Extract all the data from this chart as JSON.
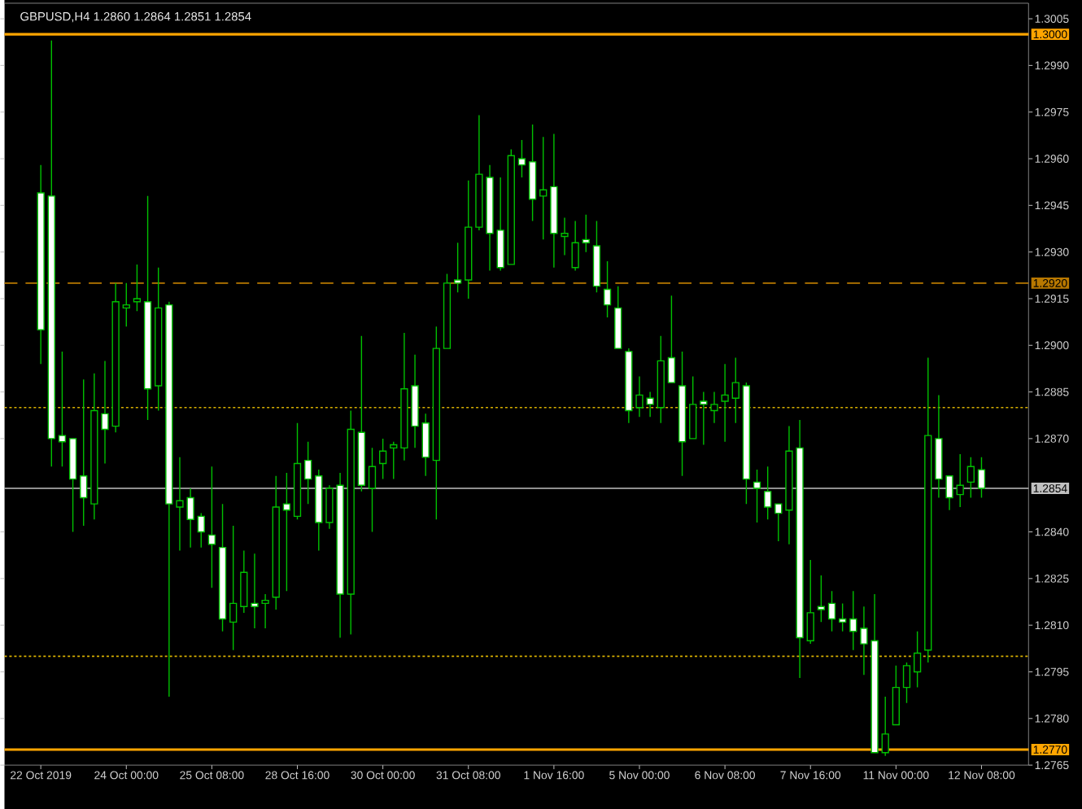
{
  "chart_data": {
    "type": "candlestick",
    "title": "GBPUSD,H4 1.2860 1.2864 1.2851 1.2854",
    "categories": [
      "22 Oct 2019",
      null,
      null,
      null,
      null,
      null,
      null,
      null,
      "24 Oct 00:00",
      null,
      null,
      null,
      null,
      null,
      null,
      null,
      "25 Oct 08:00",
      null,
      null,
      null,
      null,
      null,
      null,
      null,
      "28 Oct 16:00",
      null,
      null,
      null,
      null,
      null,
      null,
      null,
      "30 Oct 00:00",
      null,
      null,
      null,
      null,
      null,
      null,
      null,
      "31 Oct 08:00",
      null,
      null,
      null,
      null,
      null,
      null,
      null,
      "1 Nov 16:00",
      null,
      null,
      null,
      null,
      null,
      null,
      null,
      "5 Nov 00:00",
      null,
      null,
      null,
      null,
      null,
      null,
      null,
      "6 Nov 08:00",
      null,
      null,
      null,
      null,
      null,
      null,
      null,
      "7 Nov 16:00",
      null,
      null,
      null,
      null,
      null,
      null,
      null,
      "11 Nov 00:00",
      null,
      null,
      null,
      null,
      null,
      null,
      null,
      "12 Nov 08:00"
    ],
    "ohlc": [
      [
        1.2949,
        1.2958,
        1.2894,
        1.2905
      ],
      [
        1.2948,
        1.2998,
        1.2861,
        1.287
      ],
      [
        1.2871,
        1.2898,
        1.2861,
        1.2869
      ],
      [
        1.287,
        1.287,
        1.284,
        1.2857
      ],
      [
        1.2858,
        1.2889,
        1.2842,
        1.2851
      ],
      [
        1.2849,
        1.2891,
        1.2844,
        1.2879
      ],
      [
        1.2878,
        1.2895,
        1.2862,
        1.2873
      ],
      [
        1.2874,
        1.292,
        1.2872,
        1.2914
      ],
      [
        1.2912,
        1.292,
        1.2906,
        1.2913
      ],
      [
        1.2914,
        1.2926,
        1.2911,
        1.2915
      ],
      [
        1.2914,
        1.2948,
        1.2876,
        1.2886
      ],
      [
        1.2887,
        1.2925,
        1.2879,
        1.2912
      ],
      [
        1.2913,
        1.2914,
        1.2787,
        1.2849
      ],
      [
        1.2848,
        1.2864,
        1.2834,
        1.285
      ],
      [
        1.2851,
        1.2854,
        1.2835,
        1.2844
      ],
      [
        1.2845,
        1.2846,
        1.2835,
        1.284
      ],
      [
        1.2839,
        1.2861,
        1.2822,
        1.2836
      ],
      [
        1.2835,
        1.2849,
        1.2808,
        1.2812
      ],
      [
        1.2811,
        1.2842,
        1.2802,
        1.2817
      ],
      [
        1.2816,
        1.2834,
        1.2814,
        1.2827
      ],
      [
        1.2817,
        1.2833,
        1.2809,
        1.2816
      ],
      [
        1.2817,
        1.282,
        1.2809,
        1.2818
      ],
      [
        1.2819,
        1.2858,
        1.2815,
        1.2848
      ],
      [
        1.2849,
        1.2859,
        1.2821,
        1.2847
      ],
      [
        1.2845,
        1.2875,
        1.2844,
        1.2862
      ],
      [
        1.2863,
        1.2869,
        1.2849,
        1.2857
      ],
      [
        1.2858,
        1.286,
        1.2834,
        1.2843
      ],
      [
        1.2843,
        1.2855,
        1.2841,
        1.2854
      ],
      [
        1.2855,
        1.2859,
        1.2806,
        1.282
      ],
      [
        1.282,
        1.2879,
        1.2807,
        1.2873
      ],
      [
        1.2872,
        1.2903,
        1.2853,
        1.2855
      ],
      [
        1.2854,
        1.2867,
        1.284,
        1.2861
      ],
      [
        1.2862,
        1.287,
        1.2857,
        1.2866
      ],
      [
        1.2867,
        1.2869,
        1.2857,
        1.2868
      ],
      [
        1.2867,
        1.2904,
        1.2863,
        1.2886
      ],
      [
        1.2887,
        1.2897,
        1.2867,
        1.2874
      ],
      [
        1.2875,
        1.2878,
        1.2858,
        1.2864
      ],
      [
        1.2863,
        1.2906,
        1.2844,
        1.2899
      ],
      [
        1.2899,
        1.2923,
        1.2899,
        1.292
      ],
      [
        1.2921,
        1.2933,
        1.2917,
        1.292
      ],
      [
        1.2921,
        1.2953,
        1.2915,
        1.2938
      ],
      [
        1.2938,
        1.2974,
        1.2937,
        1.2955
      ],
      [
        1.2954,
        1.2958,
        1.2924,
        1.2936
      ],
      [
        1.2937,
        1.2954,
        1.2924,
        1.2925
      ],
      [
        1.2926,
        1.2963,
        1.2926,
        1.2961
      ],
      [
        1.296,
        1.2966,
        1.2954,
        1.2958
      ],
      [
        1.2959,
        1.2971,
        1.294,
        1.2947
      ],
      [
        1.2948,
        1.2967,
        1.2934,
        1.295
      ],
      [
        1.2951,
        1.2968,
        1.2925,
        1.2936
      ],
      [
        1.2935,
        1.2941,
        1.2929,
        1.2936
      ],
      [
        1.2925,
        1.294,
        1.2924,
        1.2933
      ],
      [
        1.2934,
        1.2942,
        1.293,
        1.2933
      ],
      [
        1.2932,
        1.294,
        1.2917,
        1.2919
      ],
      [
        1.2918,
        1.2927,
        1.2909,
        1.2913
      ],
      [
        1.2912,
        1.2919,
        1.2899,
        1.2899
      ],
      [
        1.2898,
        1.2899,
        1.2875,
        1.2879
      ],
      [
        1.288,
        1.289,
        1.2877,
        1.2884
      ],
      [
        1.2883,
        1.2885,
        1.2877,
        1.2881
      ],
      [
        1.288,
        1.2903,
        1.2875,
        1.2895
      ],
      [
        1.2896,
        1.2916,
        1.2888,
        1.2888
      ],
      [
        1.2887,
        1.2898,
        1.2858,
        1.2869
      ],
      [
        1.287,
        1.289,
        1.287,
        1.2881
      ],
      [
        1.2882,
        1.2885,
        1.2868,
        1.2881
      ],
      [
        1.2879,
        1.2885,
        1.2875,
        1.2881
      ],
      [
        1.2882,
        1.2894,
        1.2869,
        1.2884
      ],
      [
        1.2883,
        1.2896,
        1.2875,
        1.2888
      ],
      [
        1.2887,
        1.2888,
        1.2849,
        1.2857
      ],
      [
        1.2856,
        1.286,
        1.2843,
        1.2854
      ],
      [
        1.2853,
        1.2861,
        1.2844,
        1.2848
      ],
      [
        1.2849,
        1.2849,
        1.2837,
        1.2846
      ],
      [
        1.2847,
        1.2874,
        1.2836,
        1.2866
      ],
      [
        1.2867,
        1.2876,
        1.2793,
        1.2806
      ],
      [
        1.2805,
        1.2831,
        1.2804,
        1.2814
      ],
      [
        1.2816,
        1.2826,
        1.2811,
        1.2815
      ],
      [
        1.2817,
        1.2821,
        1.2808,
        1.2812
      ],
      [
        1.2812,
        1.2817,
        1.2808,
        1.2811
      ],
      [
        1.2812,
        1.2821,
        1.2802,
        1.2808
      ],
      [
        1.2809,
        1.2816,
        1.2794,
        1.2804
      ],
      [
        1.2805,
        1.282,
        1.2769,
        1.2769
      ],
      [
        1.2769,
        1.2787,
        1.2768,
        1.2775
      ],
      [
        1.2778,
        1.2797,
        1.2778,
        1.279
      ],
      [
        1.279,
        1.2798,
        1.2785,
        1.2797
      ],
      [
        1.2795,
        1.2808,
        1.279,
        1.2801
      ],
      [
        1.2802,
        1.2896,
        1.2798,
        1.2871
      ],
      [
        1.287,
        1.2884,
        1.2851,
        1.2857
      ],
      [
        1.2858,
        1.2858,
        1.2847,
        1.2851
      ],
      [
        1.2852,
        1.2865,
        1.2848,
        1.2855
      ],
      [
        1.2856,
        1.2864,
        1.2851,
        1.2861
      ],
      [
        1.286,
        1.2864,
        1.2851,
        1.2854
      ]
    ],
    "color": "#00c000",
    "colors": [
      "#ffffff",
      "#ffffff",
      "#ffffff",
      "#ffffff",
      "#ffffff",
      "#000000",
      "#ffffff",
      "#000000",
      "#000000",
      "#000000",
      "#ffffff",
      "#000000",
      "#ffffff",
      "#000000",
      "#ffffff",
      "#ffffff",
      "#ffffff",
      "#ffffff",
      "#000000",
      "#000000",
      "#ffffff",
      "#000000",
      "#000000",
      "#ffffff",
      "#000000",
      "#ffffff",
      "#ffffff",
      "#000000",
      "#ffffff",
      "#000000",
      "#ffffff",
      "#000000",
      "#000000",
      "#000000",
      "#000000",
      "#ffffff",
      "#ffffff",
      "#000000",
      "#000000",
      "#ffffff",
      "#000000",
      "#000000",
      "#ffffff",
      "#ffffff",
      "#000000",
      "#ffffff",
      "#ffffff",
      "#000000",
      "#ffffff",
      "#000000",
      "#000000",
      "#ffffff",
      "#ffffff",
      "#ffffff",
      "#ffffff",
      "#ffffff",
      "#000000",
      "#ffffff",
      "#000000",
      "#ffffff",
      "#ffffff",
      "#000000",
      "#ffffff",
      "#000000",
      "#000000",
      "#000000",
      "#ffffff",
      "#ffffff",
      "#ffffff",
      "#ffffff",
      "#000000",
      "#ffffff",
      "#000000",
      "#ffffff",
      "#ffffff",
      "#ffffff",
      "#ffffff",
      "#ffffff",
      "#ffffff",
      "#000000",
      "#000000",
      "#000000",
      "#000000",
      "#000000",
      "#ffffff",
      "#ffffff",
      "#000000",
      "#000000",
      "#ffffff"
    ],
    "ylim": [
      1.2765,
      1.301
    ],
    "yticks": [
      {
        "value": 1.3005,
        "label": "1.3005"
      },
      {
        "value": 1.299,
        "label": "1.2990"
      },
      {
        "value": 1.2975,
        "label": "1.2975"
      },
      {
        "value": 1.296,
        "label": "1.2960"
      },
      {
        "value": 1.2945,
        "label": "1.2945"
      },
      {
        "value": 1.293,
        "label": "1.2930"
      },
      {
        "value": 1.2915,
        "label": "1.2915"
      },
      {
        "value": 1.29,
        "label": "1.2900"
      },
      {
        "value": 1.2885,
        "label": "1.2885"
      },
      {
        "value": 1.287,
        "label": "1.2870"
      },
      {
        "value": 1.284,
        "label": "1.2840"
      },
      {
        "value": 1.2825,
        "label": "1.2825"
      },
      {
        "value": 1.281,
        "label": "1.2810"
      },
      {
        "value": 1.2795,
        "label": "1.2795"
      },
      {
        "value": 1.278,
        "label": "1.2780"
      },
      {
        "value": 1.2765,
        "label": "1.2765"
      }
    ],
    "ref_lines": [
      {
        "axis": "y",
        "value": 1.3,
        "label": "1.3000",
        "color": "#ffa500",
        "line_style": "solid"
      },
      {
        "axis": "y",
        "value": 1.292,
        "label": "1.2920",
        "color": "#b87800",
        "line_style": "dashed"
      },
      {
        "axis": "y",
        "value": 1.288,
        "color": "#d8b000",
        "line_style": "dotted"
      },
      {
        "axis": "y",
        "value": 1.2854,
        "label": "1.2854",
        "color": "#c0c0c0",
        "line_style": "solid"
      },
      {
        "axis": "y",
        "value": 1.28,
        "color": "#d8b000",
        "line_style": "dotted"
      },
      {
        "axis": "y",
        "value": 1.277,
        "label": "1.2770",
        "color": "#ffa500",
        "line_style": "solid"
      }
    ]
  }
}
